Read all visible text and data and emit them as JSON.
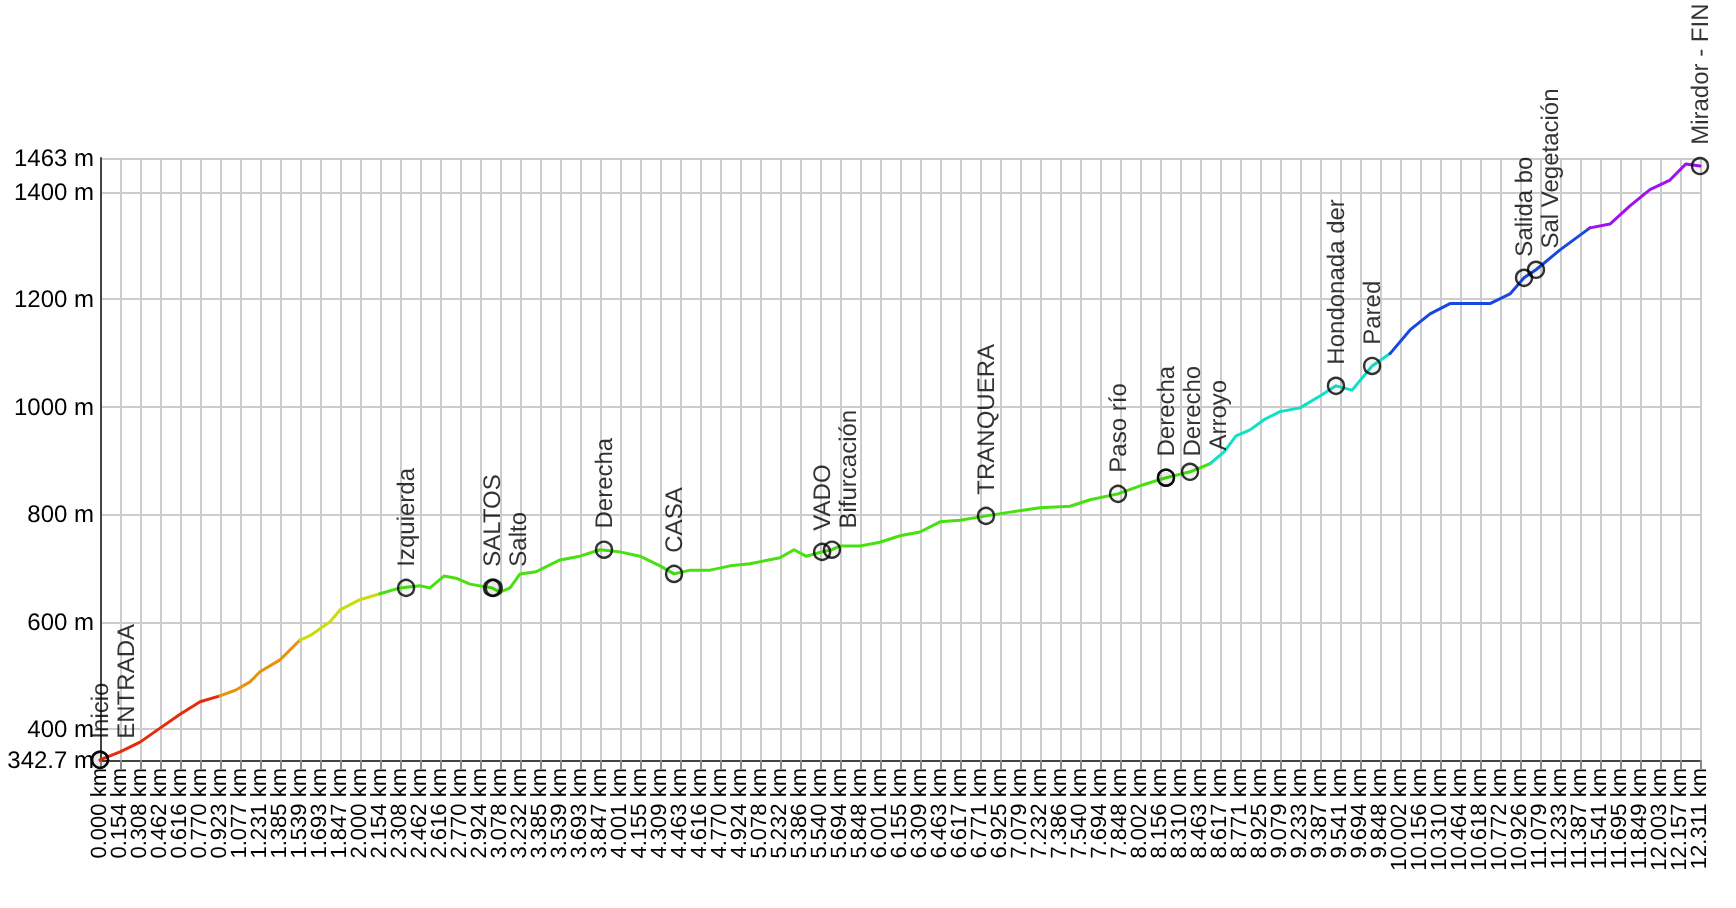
{
  "chart_data": {
    "type": "line",
    "xlim": [
      0,
      12.311
    ],
    "xticks": [
      {
        "value": 0,
        "label": "0.000 km"
      },
      {
        "value": 0.154,
        "label": "0.154 km"
      },
      {
        "value": 0.308,
        "label": "0.308 km"
      },
      {
        "value": 0.462,
        "label": "0.462 km"
      },
      {
        "value": 0.616,
        "label": "0.616 km"
      },
      {
        "value": 0.77,
        "label": "0.770 km"
      },
      {
        "value": 0.923,
        "label": "0.923 km"
      },
      {
        "value": 1.077,
        "label": "1.077 km"
      },
      {
        "value": 1.231,
        "label": "1.231 km"
      },
      {
        "value": 1.385,
        "label": "1.385 km"
      },
      {
        "value": 1.539,
        "label": "1.539 km"
      },
      {
        "value": 1.693,
        "label": "1.693 km"
      },
      {
        "value": 1.847,
        "label": "1.847 km"
      },
      {
        "value": 2.0,
        "label": "2.000 km"
      },
      {
        "value": 2.154,
        "label": "2.154 km"
      },
      {
        "value": 2.308,
        "label": "2.308 km"
      },
      {
        "value": 2.462,
        "label": "2.462 km"
      },
      {
        "value": 2.616,
        "label": "2.616 km"
      },
      {
        "value": 2.77,
        "label": "2.770 km"
      },
      {
        "value": 2.924,
        "label": "2.924 km"
      },
      {
        "value": 3.078,
        "label": "3.078 km"
      },
      {
        "value": 3.232,
        "label": "3.232 km"
      },
      {
        "value": 3.385,
        "label": "3.385 km"
      },
      {
        "value": 3.539,
        "label": "3.539 km"
      },
      {
        "value": 3.693,
        "label": "3.693 km"
      },
      {
        "value": 3.847,
        "label": "3.847 km"
      },
      {
        "value": 4.001,
        "label": "4.001 km"
      },
      {
        "value": 4.155,
        "label": "4.155 km"
      },
      {
        "value": 4.309,
        "label": "4.309 km"
      },
      {
        "value": 4.463,
        "label": "4.463 km"
      },
      {
        "value": 4.616,
        "label": "4.616 km"
      },
      {
        "value": 4.77,
        "label": "4.770 km"
      },
      {
        "value": 4.924,
        "label": "4.924 km"
      },
      {
        "value": 5.078,
        "label": "5.078 km"
      },
      {
        "value": 5.232,
        "label": "5.232 km"
      },
      {
        "value": 5.386,
        "label": "5.386 km"
      },
      {
        "value": 5.54,
        "label": "5.540 km"
      },
      {
        "value": 5.694,
        "label": "5.694 km"
      },
      {
        "value": 5.848,
        "label": "5.848 km"
      },
      {
        "value": 6.001,
        "label": "6.001 km"
      },
      {
        "value": 6.155,
        "label": "6.155 km"
      },
      {
        "value": 6.309,
        "label": "6.309 km"
      },
      {
        "value": 6.463,
        "label": "6.463 km"
      },
      {
        "value": 6.617,
        "label": "6.617 km"
      },
      {
        "value": 6.771,
        "label": "6.771 km"
      },
      {
        "value": 6.925,
        "label": "6.925 km"
      },
      {
        "value": 7.079,
        "label": "7.079 km"
      },
      {
        "value": 7.232,
        "label": "7.232 km"
      },
      {
        "value": 7.386,
        "label": "7.386 km"
      },
      {
        "value": 7.54,
        "label": "7.540 km"
      },
      {
        "value": 7.694,
        "label": "7.694 km"
      },
      {
        "value": 7.848,
        "label": "7.848 km"
      },
      {
        "value": 8.002,
        "label": "8.002 km"
      },
      {
        "value": 8.156,
        "label": "8.156 km"
      },
      {
        "value": 8.31,
        "label": "8.310 km"
      },
      {
        "value": 8.463,
        "label": "8.463 km"
      },
      {
        "value": 8.617,
        "label": "8.617 km"
      },
      {
        "value": 8.771,
        "label": "8.771 km"
      },
      {
        "value": 8.925,
        "label": "8.925 km"
      },
      {
        "value": 9.079,
        "label": "9.079 km"
      },
      {
        "value": 9.233,
        "label": "9.233 km"
      },
      {
        "value": 9.387,
        "label": "9.387 km"
      },
      {
        "value": 9.541,
        "label": "9.541 km"
      },
      {
        "value": 9.694,
        "label": "9.694 km"
      },
      {
        "value": 9.848,
        "label": "9.848 km"
      },
      {
        "value": 10.002,
        "label": "10.002 km"
      },
      {
        "value": 10.156,
        "label": "10.156 km"
      },
      {
        "value": 10.31,
        "label": "10.310 km"
      },
      {
        "value": 10.464,
        "label": "10.464 km"
      },
      {
        "value": 10.618,
        "label": "10.618 km"
      },
      {
        "value": 10.772,
        "label": "10.772 km"
      },
      {
        "value": 10.926,
        "label": "10.926 km"
      },
      {
        "value": 11.079,
        "label": "11.079 km"
      },
      {
        "value": 11.233,
        "label": "11.233 km"
      },
      {
        "value": 11.387,
        "label": "11.387 km"
      },
      {
        "value": 11.541,
        "label": "11.541 km"
      },
      {
        "value": 11.695,
        "label": "11.695 km"
      },
      {
        "value": 11.849,
        "label": "11.849 km"
      },
      {
        "value": 12.003,
        "label": "12.003 km"
      },
      {
        "value": 12.157,
        "label": "12.157 km"
      },
      {
        "value": 12.311,
        "label": "12.311 km"
      }
    ],
    "ylim": [
      342.7,
      1463
    ],
    "yticks": [
      {
        "value": 342.7,
        "label": "342.7 m"
      },
      {
        "value": 400,
        "label": "400 m"
      },
      {
        "value": 600,
        "label": "600 m"
      },
      {
        "value": 800,
        "label": "800 m"
      },
      {
        "value": 1000,
        "label": "1000 m"
      },
      {
        "value": 1200,
        "label": "1200 m"
      },
      {
        "value": 1400,
        "label": "1400 m"
      },
      {
        "value": 1463,
        "label": "1463 m"
      }
    ],
    "grid": true,
    "marker": "none",
    "line_style": "solid",
    "series": [
      {
        "color": "#e82a0c",
        "x": [
          0,
          0.154,
          0.308,
          0.462,
          0.616,
          0.77,
          0.923
        ],
        "values": [
          343,
          358,
          376,
          402,
          428,
          451,
          462
        ]
      },
      {
        "color": "#e8940a",
        "x": [
          0.923,
          1.046,
          1.154,
          1.231,
          1.385,
          1.539
        ],
        "values": [
          462,
          473,
          488,
          507,
          529,
          566
        ]
      },
      {
        "color": "#c8dc10",
        "x": [
          1.539,
          1.616,
          1.77,
          1.847,
          2.0,
          2.154
        ],
        "values": [
          566,
          574,
          600,
          622,
          641,
          652
        ]
      },
      {
        "color": "#48e010",
        "x": [
          2.154,
          2.308,
          2.462,
          2.539,
          2.647,
          2.739,
          2.847,
          3.016,
          3.078,
          3.155,
          3.232,
          3.355,
          3.539,
          3.693,
          3.847,
          4.001,
          4.155,
          4.309,
          4.417,
          4.54,
          4.694,
          4.848,
          5.001,
          5.232,
          5.34,
          5.432,
          5.556,
          5.632,
          5.694,
          5.848,
          6.001,
          6.155,
          6.309,
          6.463,
          6.617,
          6.817,
          7.002,
          7.233,
          7.464,
          7.618,
          7.833,
          8.002,
          8.202,
          8.387,
          8.541
        ],
        "values": [
          652,
          663,
          667,
          663,
          685,
          681,
          670,
          663,
          655,
          663,
          689,
          693,
          715,
          722,
          734,
          730,
          722,
          704,
          689,
          696,
          696,
          704,
          708,
          719,
          734,
          722,
          730,
          734,
          741,
          741,
          748,
          760,
          767,
          786,
          789,
          797,
          804,
          812,
          815,
          827,
          838,
          853,
          868,
          879,
          894
        ]
      },
      {
        "color": "#10e0c8",
        "x": [
          8.541,
          8.649,
          8.741,
          8.849,
          8.956,
          9.08,
          9.233,
          9.387,
          9.51,
          9.634,
          9.788,
          9.926
        ],
        "values": [
          894,
          916,
          946,
          957,
          976,
          991,
          998,
          1020,
          1039,
          1031,
          1076,
          1099
        ]
      },
      {
        "color": "#1848e0",
        "x": [
          9.926,
          10.08,
          10.234,
          10.387,
          10.695,
          10.849,
          10.957,
          11.049,
          11.234,
          11.464
        ],
        "values": [
          1099,
          1143,
          1173,
          1192,
          1192,
          1210,
          1240,
          1255,
          1292,
          1333
        ]
      },
      {
        "color": "#a010f0",
        "x": [
          11.464,
          11.618,
          11.772,
          11.926,
          12.08,
          12.203,
          12.311
        ],
        "values": [
          1333,
          1340,
          1374,
          1404,
          1422,
          1452,
          1448
        ]
      }
    ],
    "annotations": [
      {
        "text": "Inicio",
        "x": 0,
        "y": 343
      },
      {
        "text": "ENTRADA",
        "x": 0,
        "y": 343
      },
      {
        "text": "Izquierda",
        "x": 2.355,
        "y": 663
      },
      {
        "text": "SALTOS",
        "x": 3.016,
        "y": 663
      },
      {
        "text": "Salto",
        "x": 3.03,
        "y": 663
      },
      {
        "text": "Derecha",
        "x": 3.878,
        "y": 734
      },
      {
        "text": "CASA",
        "x": 4.417,
        "y": 689
      },
      {
        "text": "VADO",
        "x": 5.556,
        "y": 730
      },
      {
        "text": "Bifurcación",
        "x": 5.632,
        "y": 734
      },
      {
        "text": "TRANQUERA",
        "x": 6.817,
        "y": 797
      },
      {
        "text": "Paso río",
        "x": 7.833,
        "y": 838
      },
      {
        "text": "Derecha",
        "x": 8.202,
        "y": 868
      },
      {
        "text": "Derecho",
        "x": 8.202,
        "y": 868
      },
      {
        "text": "Arroyo",
        "x": 8.387,
        "y": 879
      },
      {
        "text": "Hondonada der",
        "x": 9.51,
        "y": 1039
      },
      {
        "text": "Pared",
        "x": 9.788,
        "y": 1076
      },
      {
        "text": "Salida bo",
        "x": 10.957,
        "y": 1240
      },
      {
        "text": "Sal Vegetación",
        "x": 11.049,
        "y": 1255
      },
      {
        "text": "Mirador - FIN",
        "x": 12.311,
        "y": 1448
      }
    ]
  }
}
